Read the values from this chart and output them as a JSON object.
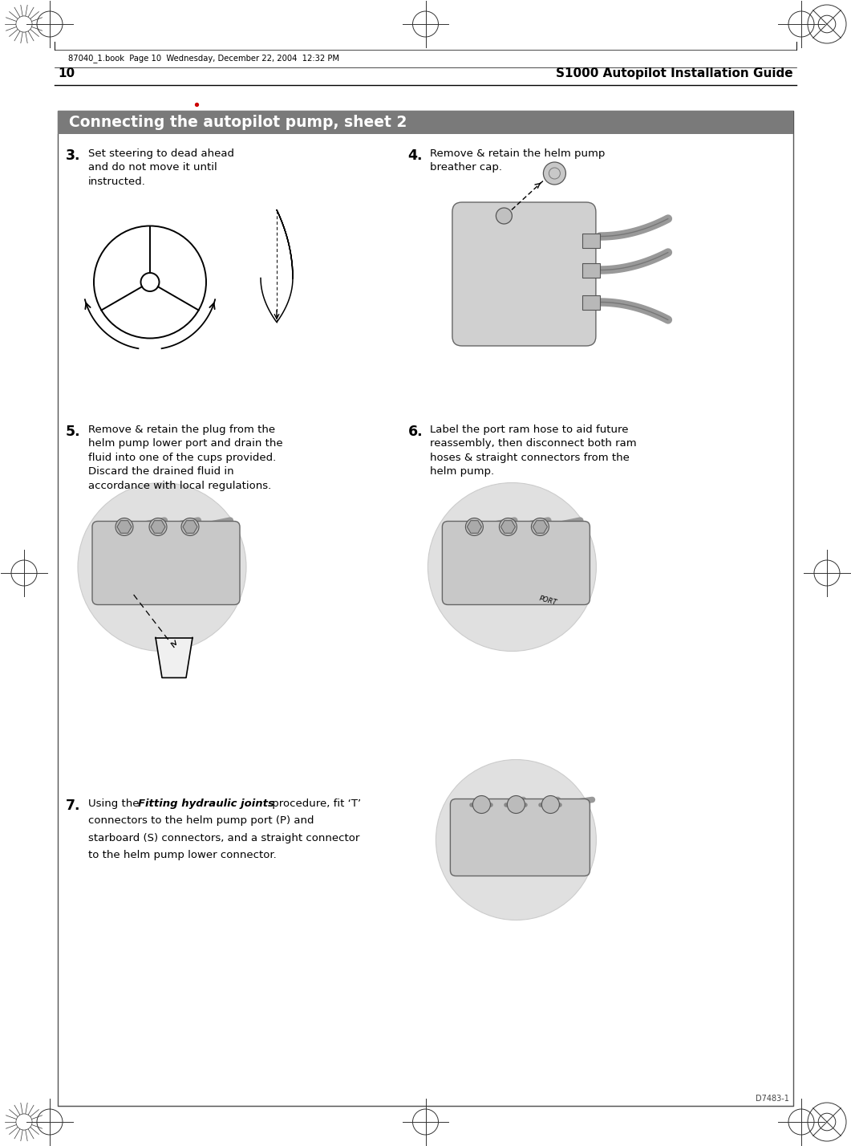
{
  "page_width": 10.61,
  "page_height": 14.28,
  "dpi": 100,
  "bg_color": "#ffffff",
  "page_number": "10",
  "page_title": "S1000 Autopilot Installation Guide",
  "header_text": "87040_1.book  Page 10  Wednesday, December 22, 2004  12:32 PM",
  "box_title": "Connecting the autopilot pump, sheet 2",
  "box_title_bg": "#7a7a7a",
  "box_title_color": "#ffffff",
  "box_border_color": "#444444",
  "step3_number": "3.",
  "step3_text": "Set steering to dead ahead\nand do not move it until\ninstructed.",
  "step4_number": "4.",
  "step4_text": "Remove & retain the helm pump\nbreather cap.",
  "step5_number": "5.",
  "step5_text": "Remove & retain the plug from the\nhelm pump lower port and drain the\nfluid into one of the cups provided.\nDiscard the drained fluid in\naccordance with local regulations.",
  "step6_number": "6.",
  "step6_text": "Label the port ram hose to aid future\nreassembly, then disconnect both ram\nhoses & straight connectors from the\nhelm pump.",
  "step7_number": "7.",
  "step7_text_pre": "Using the ",
  "step7_text_italic": "Fitting hydraulic joints",
  "step7_text_post": " procedure, fit ‘T’\nconnectors to the helm pump port (P) and\nstarboard (S) connectors, and a straight connector\nto the helm pump lower connector.",
  "footer_text": "D7483-1",
  "red_dot_color": "#cc0000",
  "gray_mid": "#aaaaaa",
  "gray_dark": "#666666",
  "gray_light": "#dddddd"
}
